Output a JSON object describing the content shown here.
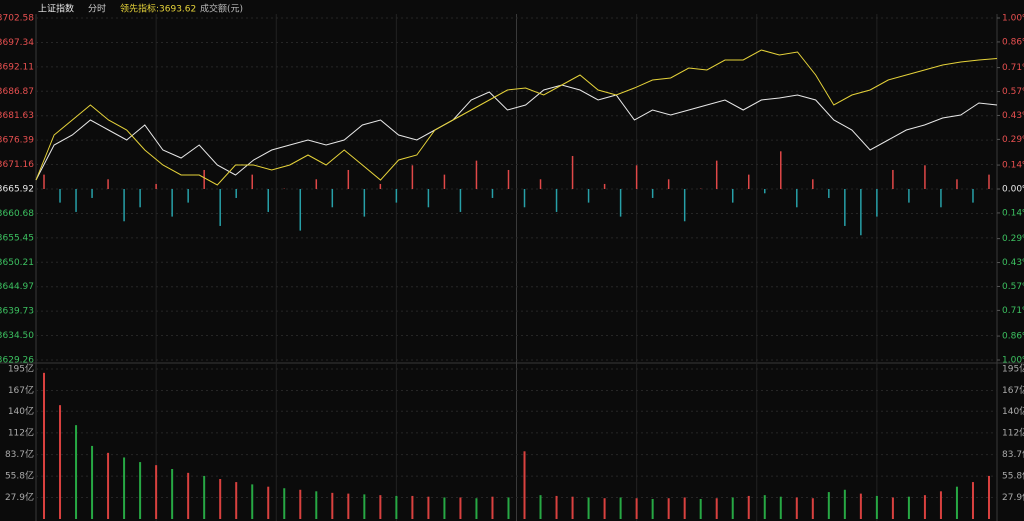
{
  "header": {
    "title": "上证指数",
    "mode": "分时",
    "indicator": "领先指标:3693.62",
    "volume_label": "成交额(元)"
  },
  "chart_data": [
    {
      "type": "line",
      "ylim": [
        3629.26,
        3702.58
      ],
      "yticks": [
        3702.58,
        3697.34,
        3692.11,
        3686.87,
        3681.63,
        3676.39,
        3671.16,
        3665.92,
        3660.68,
        3655.45,
        3650.21,
        3644.97,
        3639.73,
        {
          "value": 3634.5,
          "label": "3634.50"
        },
        3629.26
      ],
      "y2lim": [
        -1,
        1
      ],
      "y2ticks": [
        {
          "value": 1,
          "label": "1.00%"
        },
        {
          "value": 0.86,
          "label": "0.86%"
        },
        {
          "value": 0.71,
          "label": "0.71%"
        },
        {
          "value": 0.57,
          "label": "0.57%"
        },
        {
          "value": 0.43,
          "label": "0.43%"
        },
        {
          "value": 0.29,
          "label": "0.29%"
        },
        {
          "value": 0.14,
          "label": "0.14%"
        },
        {
          "value": 0,
          "label": "0.00%"
        },
        {
          "value": -0.14,
          "label": "0.14%"
        },
        {
          "value": -0.29,
          "label": "0.29%"
        },
        {
          "value": -0.43,
          "label": "0.43%"
        },
        {
          "value": -0.57,
          "label": "0.57%"
        },
        {
          "value": -0.71,
          "label": "0.71%"
        },
        {
          "value": -0.86,
          "label": "0.86%"
        },
        {
          "value": -1,
          "label": "1.00%"
        }
      ],
      "grid": true,
      "up_color": "#e04848",
      "down_color": "#27a0a8",
      "series": [
        {
          "color": "#e8e8e8",
          "values": [
            3667.85,
            3675.35,
            3677.5,
            3680.71,
            3678.57,
            3676.42,
            3679.64,
            3674.28,
            3672.57,
            3675.35,
            3671.06,
            3668.92,
            3672.14,
            3674.28,
            3675.35,
            3676.42,
            3675.35,
            3676.42,
            3679.64,
            3680.71,
            3677.5,
            3676.42,
            3678.57,
            3680.71,
            3685.0,
            3686.72,
            3682.86,
            3683.93,
            3687.15,
            3688.22,
            3687.15,
            3685.0,
            3686.07,
            3680.71,
            3682.86,
            3681.78,
            3682.86,
            3683.93,
            3685.0,
            3682.86,
            3685.0,
            3685.43,
            3686.07,
            3685.0,
            3680.71,
            3678.57,
            3674.28,
            3676.42,
            3678.57,
            3679.64,
            3681.14,
            3681.78,
            3684.36,
            3683.93
          ]
        },
        {
          "color": "#e6d33a",
          "values": [
            3667.85,
            3677.5,
            3680.71,
            3683.93,
            3680.71,
            3678.57,
            3674.28,
            3671.06,
            3668.92,
            3668.92,
            3666.78,
            3671.06,
            3671.06,
            3669.99,
            3671.06,
            3673.21,
            3671.06,
            3674.28,
            3671.06,
            3667.85,
            3672.14,
            3673.21,
            3678.57,
            3680.71,
            3682.86,
            3685.0,
            3687.15,
            3687.57,
            3686.07,
            3688.22,
            3690.36,
            3687.15,
            3686.07,
            3687.57,
            3689.29,
            3689.72,
            3691.86,
            3691.43,
            3693.58,
            3693.58,
            3695.72,
            3694.65,
            3695.29,
            3690.36,
            3683.93,
            3686.07,
            3687.15,
            3689.29,
            3690.36,
            3691.43,
            3692.5,
            3693.15,
            3693.58,
            3693.9
          ]
        }
      ],
      "bars": [
        3669,
        3663,
        3661,
        3664,
        3668,
        3659,
        3662,
        3667,
        3660,
        3663,
        3670,
        3658,
        3664,
        3669,
        3661,
        3666,
        3657,
        3668,
        3662,
        3670,
        3660,
        3667,
        3663,
        3671,
        3662,
        3669,
        3661,
        3672,
        3664,
        3670,
        3662,
        3668,
        3661,
        3673,
        3663,
        3667,
        3660,
        3671,
        3664,
        3668,
        3659,
        3666,
        3672,
        3663,
        3669,
        3665,
        3674,
        3662,
        3668,
        3664,
        3658,
        3656,
        3660,
        3670,
        3663,
        3671,
        3662,
        3668,
        3663,
        3669
      ]
    },
    {
      "type": "bar",
      "ylim": [
        0,
        195
      ],
      "yticks": [
        {
          "value": 195,
          "label": "195亿"
        },
        {
          "value": 167,
          "label": "167亿"
        },
        {
          "value": 140,
          "label": "140亿"
        },
        {
          "value": 112,
          "label": "112亿"
        },
        {
          "value": 83.7,
          "label": "83.7亿"
        },
        {
          "value": 55.8,
          "label": "55.8亿"
        },
        {
          "value": 27.9,
          "label": "27.9亿"
        }
      ],
      "values": [
        190,
        148,
        122,
        95,
        86,
        80,
        74,
        70,
        65,
        60,
        56,
        52,
        48,
        45,
        42,
        40,
        38,
        36,
        34,
        33,
        32,
        31,
        30,
        30,
        29,
        28,
        28,
        27,
        29,
        28,
        88,
        31,
        30,
        29,
        28,
        27,
        28,
        27,
        26,
        27,
        28,
        26,
        27,
        28,
        30,
        31,
        29,
        28,
        27,
        35,
        38,
        33,
        30,
        28,
        29,
        31,
        36,
        42,
        48,
        56
      ],
      "colors": [
        "#d9413f",
        "#d9413f",
        "#27a844",
        "#27a844",
        "#d9413f",
        "#27a844",
        "#27a844",
        "#d9413f",
        "#27a844",
        "#d9413f",
        "#27a844",
        "#d9413f",
        "#d9413f",
        "#27a844",
        "#d9413f",
        "#27a844",
        "#d9413f",
        "#27a844",
        "#d9413f",
        "#d9413f",
        "#27a844",
        "#d9413f",
        "#27a844",
        "#d9413f",
        "#d9413f",
        "#27a844",
        "#d9413f",
        "#27a844",
        "#d9413f",
        "#27a844",
        "#d9413f",
        "#27a844",
        "#d9413f",
        "#d9413f",
        "#27a844",
        "#d9413f",
        "#27a844",
        "#d9413f",
        "#27a844",
        "#d9413f",
        "#d9413f",
        "#27a844",
        "#d9413f",
        "#27a844",
        "#d9413f",
        "#27a844",
        "#27a844",
        "#d9413f",
        "#d9413f",
        "#27a844",
        "#27a844",
        "#d9413f",
        "#27a844",
        "#d9413f",
        "#27a844",
        "#d9413f",
        "#d9413f",
        "#27a844",
        "#d9413f",
        "#d9413f"
      ]
    }
  ]
}
